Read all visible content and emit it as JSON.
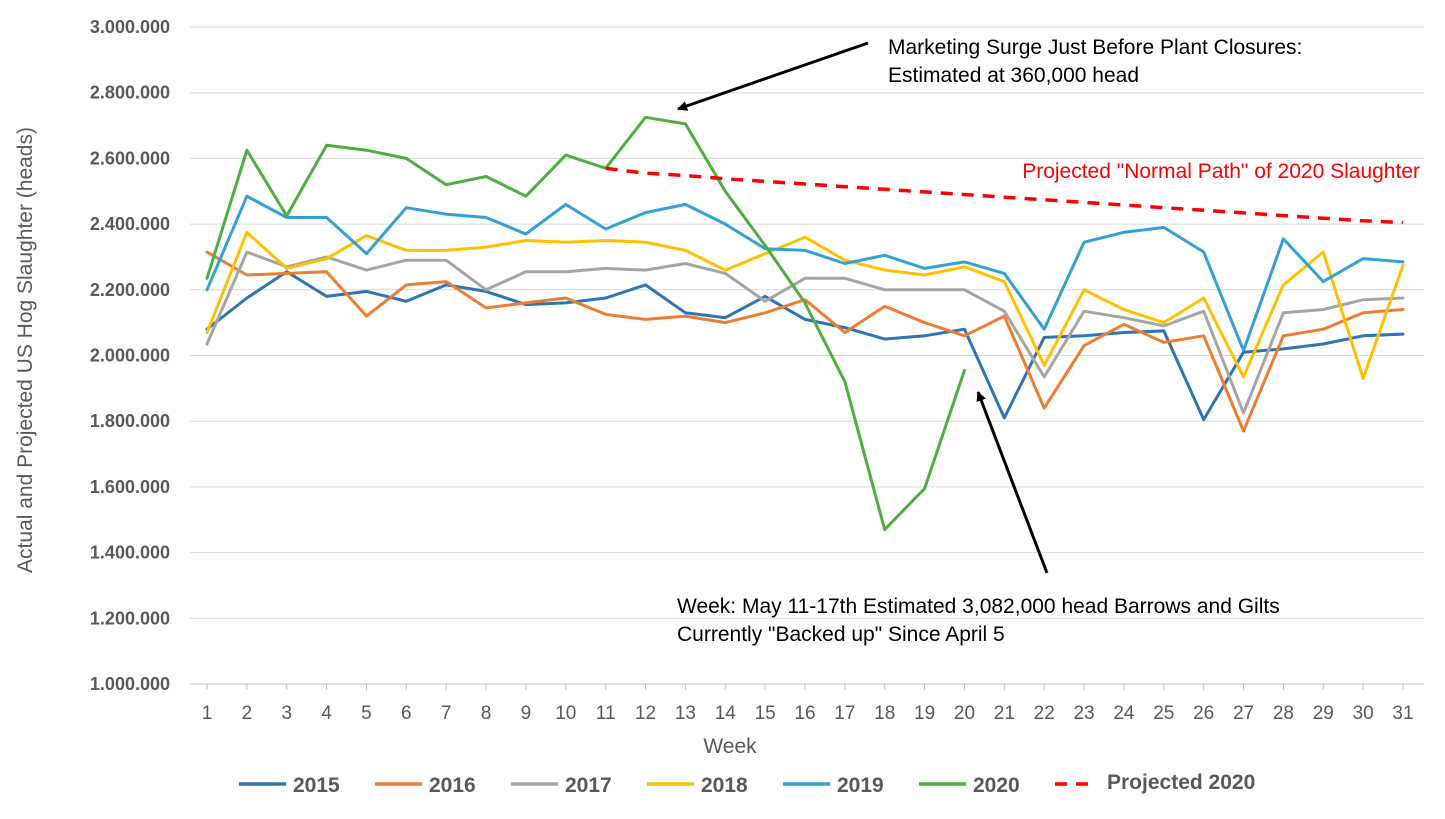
{
  "chart_data": {
    "type": "line",
    "xlabel": "Week",
    "ylabel": "Actual and Projected US Hog Slaughter (heads)",
    "ylim": [
      1000000,
      3000000
    ],
    "y_ticks": [
      "1.000.000",
      "1.200.000",
      "1.400.000",
      "1.600.000",
      "1.800.000",
      "2.000.000",
      "2.200.000",
      "2.400.000",
      "2.600.000",
      "2.800.000",
      "3.000.000"
    ],
    "x": [
      1,
      2,
      3,
      4,
      5,
      6,
      7,
      8,
      9,
      10,
      11,
      12,
      13,
      14,
      15,
      16,
      17,
      18,
      19,
      20,
      21,
      22,
      23,
      24,
      25,
      26,
      27,
      28,
      29,
      30,
      31
    ],
    "grid": "horizontal",
    "legend_position": "bottom",
    "series": [
      {
        "name": "2015",
        "color": "#2e75b6",
        "dashed": false,
        "values": [
          2080000,
          2175000,
          2255000,
          2180000,
          2195000,
          2165000,
          2215000,
          2195000,
          2155000,
          2160000,
          2175000,
          2215000,
          2130000,
          2115000,
          2180000,
          2110000,
          2085000,
          2050000,
          2060000,
          2080000,
          1810000,
          2055000,
          2060000,
          2070000,
          2075000,
          1805000,
          2010000,
          2020000,
          2035000,
          2060000,
          2065000
        ]
      },
      {
        "name": "2016",
        "color": "#ed7d31",
        "dashed": false,
        "values": [
          2315000,
          2245000,
          2250000,
          2255000,
          2120000,
          2215000,
          2225000,
          2145000,
          2160000,
          2175000,
          2125000,
          2110000,
          2120000,
          2100000,
          2130000,
          2170000,
          2070000,
          2150000,
          2100000,
          2060000,
          2120000,
          1840000,
          2030000,
          2095000,
          2040000,
          2060000,
          1770000,
          2060000,
          2080000,
          2130000,
          2140000
        ]
      },
      {
        "name": "2017",
        "color": "#a5a5a5",
        "dashed": false,
        "values": [
          2035000,
          2315000,
          2270000,
          2300000,
          2260000,
          2290000,
          2290000,
          2200000,
          2255000,
          2255000,
          2265000,
          2260000,
          2280000,
          2250000,
          2165000,
          2235000,
          2235000,
          2200000,
          2200000,
          2200000,
          2135000,
          1935000,
          2135000,
          2115000,
          2090000,
          2135000,
          1825000,
          2130000,
          2140000,
          2170000,
          2175000
        ]
      },
      {
        "name": "2018",
        "color": "#ffc000",
        "dashed": false,
        "values": [
          2070000,
          2375000,
          2265000,
          2295000,
          2365000,
          2320000,
          2320000,
          2330000,
          2350000,
          2345000,
          2350000,
          2345000,
          2320000,
          2260000,
          2310000,
          2360000,
          2290000,
          2260000,
          2245000,
          2270000,
          2225000,
          1970000,
          2200000,
          2140000,
          2100000,
          2175000,
          1935000,
          2215000,
          2315000,
          1930000,
          2275000
        ]
      },
      {
        "name": "2019",
        "color": "#33a0d6",
        "dashed": false,
        "values": [
          2200000,
          2485000,
          2420000,
          2420000,
          2310000,
          2450000,
          2430000,
          2420000,
          2370000,
          2460000,
          2385000,
          2435000,
          2460000,
          2400000,
          2325000,
          2320000,
          2280000,
          2305000,
          2265000,
          2285000,
          2250000,
          2080000,
          2345000,
          2375000,
          2390000,
          2315000,
          2015000,
          2355000,
          2225000,
          2295000,
          2285000
        ]
      },
      {
        "name": "2020",
        "color": "#4caf3e",
        "dashed": false,
        "values": [
          2235000,
          2625000,
          2425000,
          2640000,
          2625000,
          2600000,
          2520000,
          2545000,
          2485000,
          2610000,
          2570000,
          2725000,
          2705000,
          2500000,
          2335000,
          2160000,
          1920000,
          1470000,
          1595000,
          1955000,
          null,
          null,
          null,
          null,
          null,
          null,
          null,
          null,
          null,
          null,
          null
        ]
      },
      {
        "name": "Projected 2020",
        "color": "#ff0000",
        "dashed": true,
        "values": [
          null,
          null,
          null,
          null,
          null,
          null,
          null,
          null,
          null,
          null,
          2570000,
          2555000,
          2548000,
          2538000,
          2530000,
          2522000,
          2514000,
          2506000,
          2498000,
          2490000,
          2482000,
          2474000,
          2466000,
          2458000,
          2450000,
          2442000,
          2434000,
          2426000,
          2418000,
          2410000,
          2405000
        ]
      }
    ],
    "annotations": {
      "surge_line1": "Marketing Surge Just Before Plant Closures:",
      "surge_line2": "Estimated at 360,000 head",
      "projected_label": "Projected \"Normal Path\" of 2020 Slaughter",
      "backlog_line1": "Week: May 11-17th Estimated 3,082,000 head Barrows and Gilts",
      "backlog_line2": "Currently \"Backed up\" Since April 5"
    }
  }
}
